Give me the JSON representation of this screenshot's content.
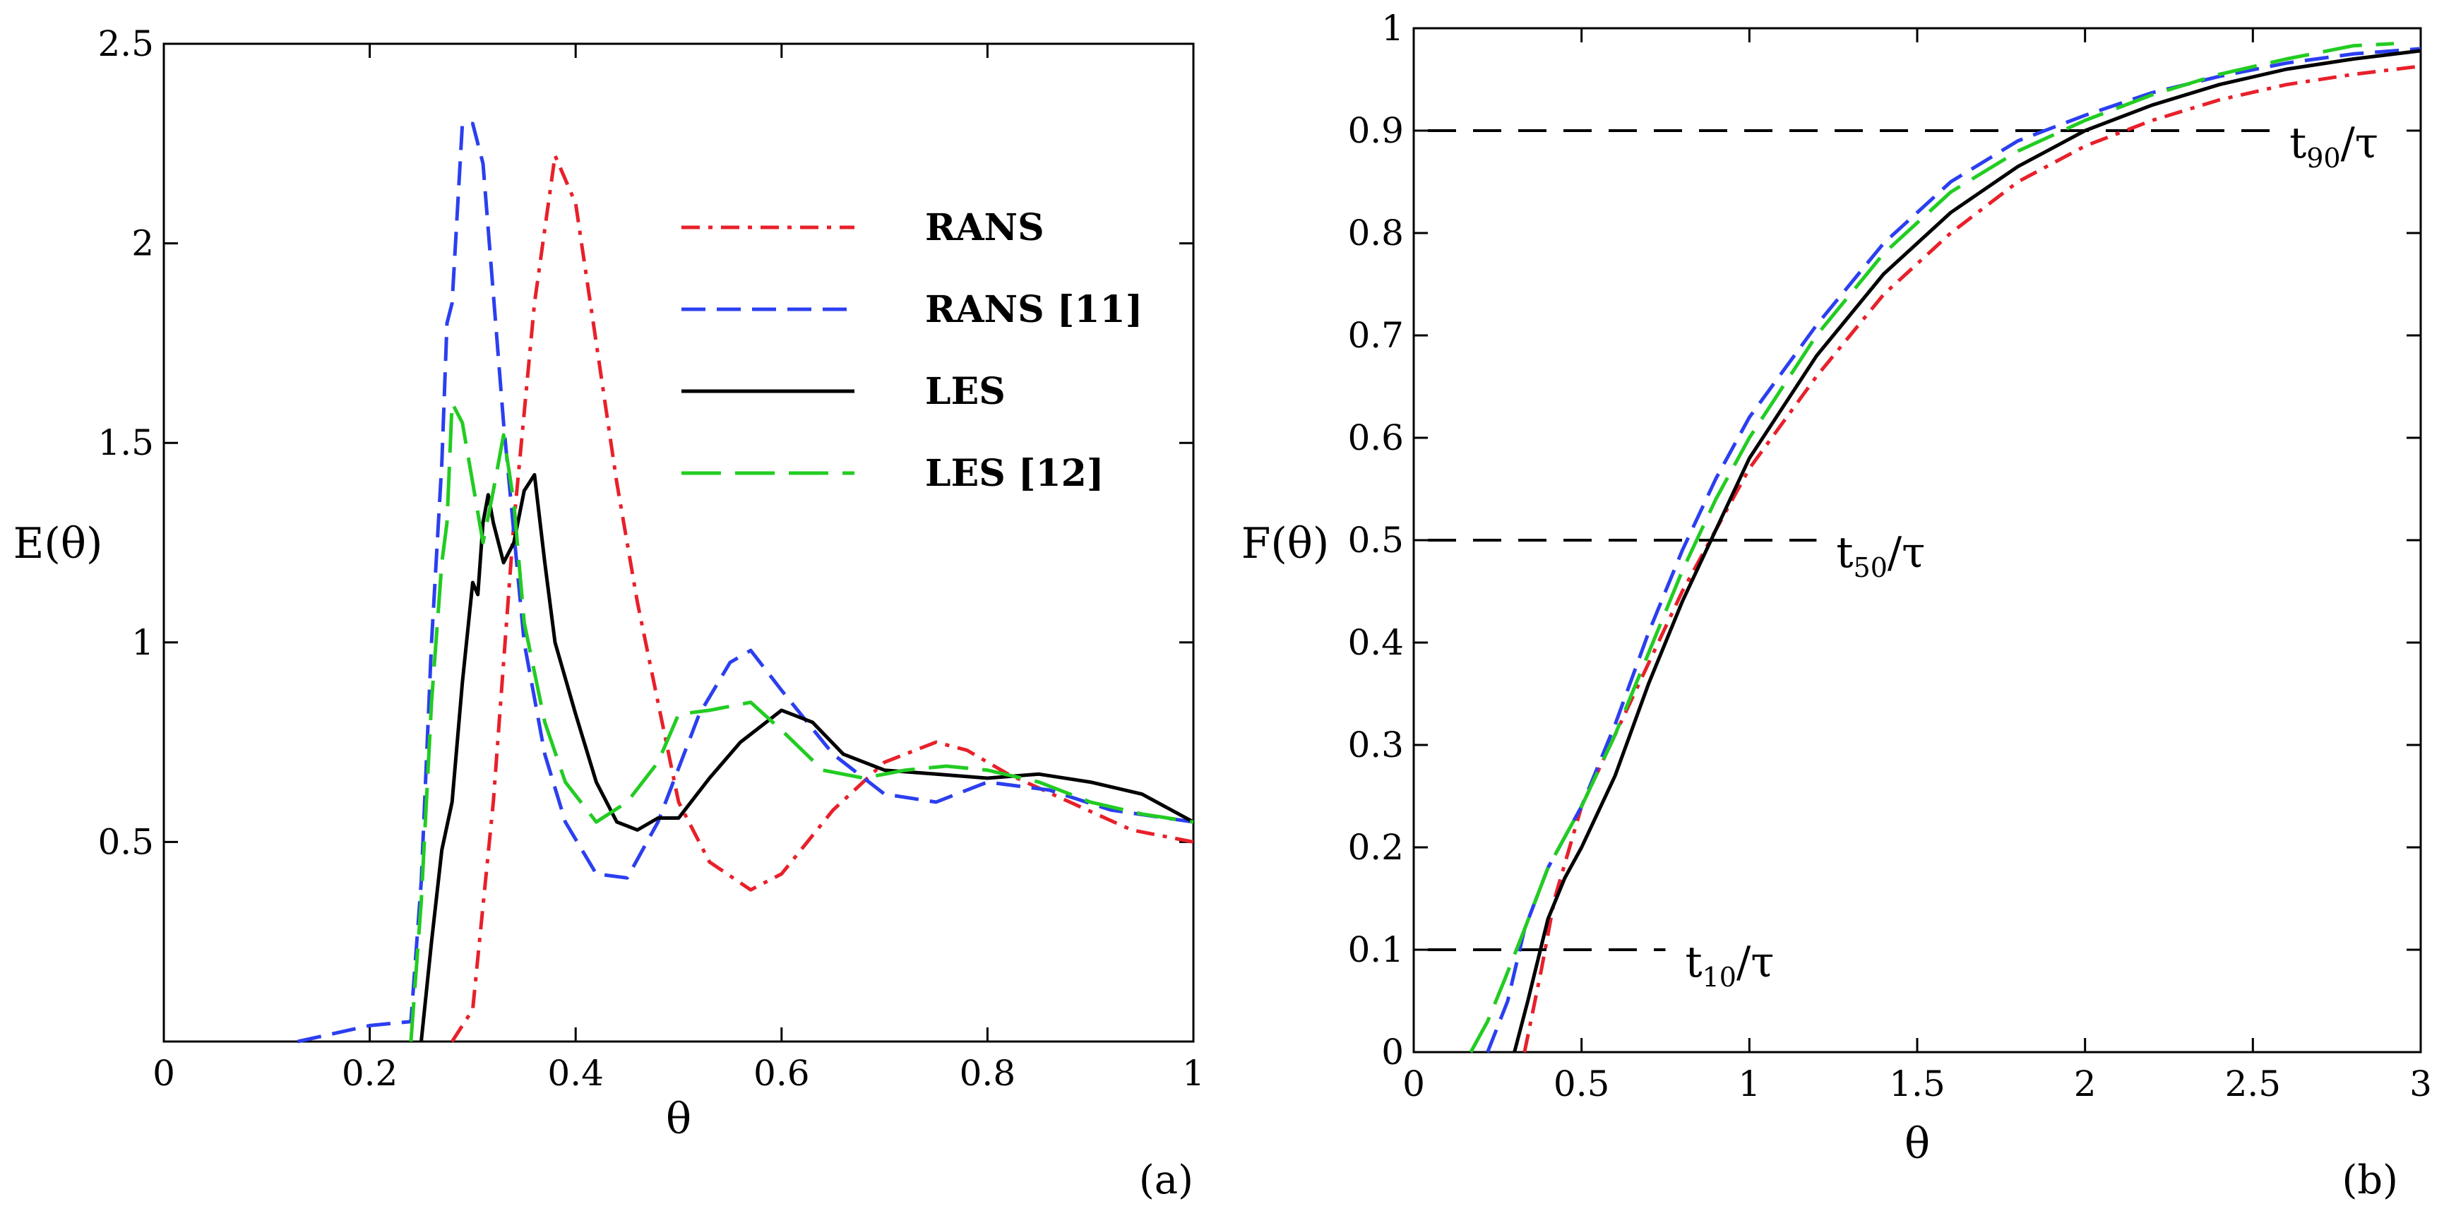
{
  "chart_data": [
    {
      "panel": "(a)",
      "type": "line",
      "title": "",
      "xlabel": "θ",
      "ylabel": "E(θ)",
      "xlim": [
        0,
        1
      ],
      "ylim": [
        0,
        2.5
      ],
      "xticks": [
        0,
        0.2,
        0.4,
        0.6,
        0.8,
        1
      ],
      "xtick_labels": [
        "0",
        "0.2",
        "0.4",
        "0.6",
        "0.8",
        "1"
      ],
      "yticks": [
        0.5,
        1,
        1.5,
        2,
        2.5
      ],
      "ytick_labels": [
        "0.5",
        "1",
        "1.5",
        "2",
        "2.5"
      ],
      "legend": "top-right",
      "series": [
        {
          "name": "RANS",
          "color": "#e8202a",
          "dash": "dashdot",
          "x": [
            0.28,
            0.3,
            0.32,
            0.34,
            0.36,
            0.38,
            0.4,
            0.42,
            0.44,
            0.46,
            0.48,
            0.5,
            0.53,
            0.57,
            0.6,
            0.65,
            0.7,
            0.75,
            0.78,
            0.82,
            0.88,
            0.94,
            1.0
          ],
          "y": [
            0,
            0.08,
            0.6,
            1.3,
            1.85,
            2.22,
            2.1,
            1.75,
            1.4,
            1.1,
            0.85,
            0.6,
            0.45,
            0.38,
            0.42,
            0.58,
            0.7,
            0.75,
            0.73,
            0.67,
            0.6,
            0.53,
            0.5
          ]
        },
        {
          "name": "RANS [11]",
          "color": "#2b3ff0",
          "dash": "dashed",
          "x": [
            0.13,
            0.2,
            0.24,
            0.25,
            0.26,
            0.27,
            0.275,
            0.28,
            0.29,
            0.3,
            0.31,
            0.33,
            0.35,
            0.37,
            0.39,
            0.42,
            0.45,
            0.48,
            0.52,
            0.55,
            0.57,
            0.6,
            0.65,
            0.7,
            0.75,
            0.8,
            0.86,
            0.92,
            1.0
          ],
          "y": [
            0,
            0.04,
            0.05,
            0.4,
            1.0,
            1.45,
            1.8,
            1.85,
            2.3,
            2.3,
            2.2,
            1.55,
            1.0,
            0.72,
            0.55,
            0.42,
            0.41,
            0.55,
            0.82,
            0.95,
            0.98,
            0.88,
            0.72,
            0.62,
            0.6,
            0.65,
            0.63,
            0.58,
            0.55
          ]
        },
        {
          "name": "LES",
          "color": "#000000",
          "dash": "solid",
          "x": [
            0.25,
            0.26,
            0.27,
            0.28,
            0.29,
            0.3,
            0.305,
            0.31,
            0.315,
            0.32,
            0.33,
            0.34,
            0.35,
            0.36,
            0.37,
            0.38,
            0.4,
            0.42,
            0.44,
            0.46,
            0.48,
            0.5,
            0.53,
            0.56,
            0.6,
            0.63,
            0.66,
            0.7,
            0.75,
            0.8,
            0.85,
            0.9,
            0.95,
            1.0
          ],
          "y": [
            0,
            0.25,
            0.48,
            0.6,
            0.9,
            1.15,
            1.12,
            1.3,
            1.37,
            1.3,
            1.2,
            1.25,
            1.38,
            1.42,
            1.2,
            1.0,
            0.82,
            0.65,
            0.55,
            0.53,
            0.56,
            0.56,
            0.66,
            0.75,
            0.83,
            0.8,
            0.72,
            0.68,
            0.67,
            0.66,
            0.67,
            0.65,
            0.62,
            0.55
          ]
        },
        {
          "name": "LES [12]",
          "color": "#22cc22",
          "dash": "longdash",
          "x": [
            0.24,
            0.25,
            0.26,
            0.27,
            0.275,
            0.28,
            0.29,
            0.3,
            0.31,
            0.32,
            0.33,
            0.34,
            0.35,
            0.37,
            0.39,
            0.42,
            0.45,
            0.48,
            0.5,
            0.53,
            0.57,
            0.6,
            0.64,
            0.68,
            0.72,
            0.76,
            0.8,
            0.85,
            0.9,
            0.95,
            1.0
          ],
          "y": [
            0,
            0.35,
            0.85,
            1.2,
            1.3,
            1.6,
            1.55,
            1.4,
            1.25,
            1.38,
            1.52,
            1.35,
            1.05,
            0.8,
            0.65,
            0.55,
            0.6,
            0.7,
            0.82,
            0.83,
            0.85,
            0.78,
            0.68,
            0.66,
            0.68,
            0.69,
            0.68,
            0.65,
            0.6,
            0.57,
            0.55
          ]
        }
      ]
    },
    {
      "panel": "(b)",
      "type": "line",
      "title": "",
      "xlabel": "θ",
      "ylabel": "F(θ)",
      "xlim": [
        0,
        3
      ],
      "ylim": [
        0,
        1
      ],
      "xticks": [
        0,
        0.5,
        1,
        1.5,
        2,
        2.5,
        3
      ],
      "xtick_labels": [
        "0",
        "0.5",
        "1",
        "1.5",
        "2",
        "2.5",
        "3"
      ],
      "yticks": [
        0,
        0.1,
        0.2,
        0.3,
        0.4,
        0.5,
        0.6,
        0.7,
        0.8,
        0.9,
        1
      ],
      "ytick_labels": [
        "0",
        "0.1",
        "0.2",
        "0.3",
        "0.4",
        "0.5",
        "0.6",
        "0.7",
        "0.8",
        "0.9",
        "1"
      ],
      "reference_lines": [
        {
          "y": 0.1,
          "x_end": 0.75,
          "label_main": "t",
          "label_sub": "10",
          "label_tail": "/τ"
        },
        {
          "y": 0.5,
          "x_end": 1.2,
          "label_main": "t",
          "label_sub": "50",
          "label_tail": "/τ"
        },
        {
          "y": 0.9,
          "x_end": 2.55,
          "label_main": "t",
          "label_sub": "90",
          "label_tail": "/τ"
        }
      ],
      "series": [
        {
          "name": "RANS",
          "color": "#e8202a",
          "dash": "dashdot",
          "x": [
            0.33,
            0.38,
            0.42,
            0.5,
            0.6,
            0.7,
            0.8,
            0.9,
            1.0,
            1.2,
            1.4,
            1.6,
            1.8,
            2.0,
            2.2,
            2.4,
            2.6,
            2.8,
            3.0
          ],
          "y": [
            0,
            0.08,
            0.15,
            0.24,
            0.31,
            0.38,
            0.45,
            0.51,
            0.57,
            0.66,
            0.74,
            0.8,
            0.85,
            0.885,
            0.91,
            0.93,
            0.945,
            0.955,
            0.963
          ]
        },
        {
          "name": "RANS [11]",
          "color": "#2b3ff0",
          "dash": "dashed",
          "x": [
            0.22,
            0.28,
            0.33,
            0.4,
            0.5,
            0.6,
            0.7,
            0.8,
            0.9,
            1.0,
            1.2,
            1.4,
            1.6,
            1.8,
            2.0,
            2.2,
            2.4,
            2.6,
            2.8,
            3.0
          ],
          "y": [
            0,
            0.05,
            0.12,
            0.18,
            0.24,
            0.32,
            0.41,
            0.49,
            0.56,
            0.62,
            0.71,
            0.79,
            0.85,
            0.89,
            0.915,
            0.937,
            0.953,
            0.966,
            0.975,
            0.98
          ]
        },
        {
          "name": "LES",
          "color": "#000000",
          "dash": "solid",
          "x": [
            0.3,
            0.34,
            0.4,
            0.45,
            0.5,
            0.6,
            0.7,
            0.8,
            0.9,
            1.0,
            1.2,
            1.4,
            1.6,
            1.8,
            2.0,
            2.2,
            2.4,
            2.6,
            2.8,
            3.0
          ],
          "y": [
            0,
            0.05,
            0.13,
            0.17,
            0.2,
            0.27,
            0.36,
            0.44,
            0.51,
            0.58,
            0.68,
            0.76,
            0.82,
            0.865,
            0.9,
            0.925,
            0.945,
            0.96,
            0.97,
            0.978
          ]
        },
        {
          "name": "LES [12]",
          "color": "#22cc22",
          "dash": "longdash",
          "x": [
            0.17,
            0.22,
            0.27,
            0.33,
            0.4,
            0.5,
            0.6,
            0.7,
            0.8,
            0.9,
            1.0,
            1.2,
            1.4,
            1.6,
            1.8,
            2.0,
            2.2,
            2.4,
            2.6,
            2.8,
            2.92
          ],
          "y": [
            0,
            0.03,
            0.07,
            0.12,
            0.18,
            0.24,
            0.31,
            0.39,
            0.47,
            0.54,
            0.6,
            0.7,
            0.78,
            0.84,
            0.88,
            0.91,
            0.935,
            0.955,
            0.97,
            0.983,
            0.985
          ]
        }
      ]
    }
  ]
}
